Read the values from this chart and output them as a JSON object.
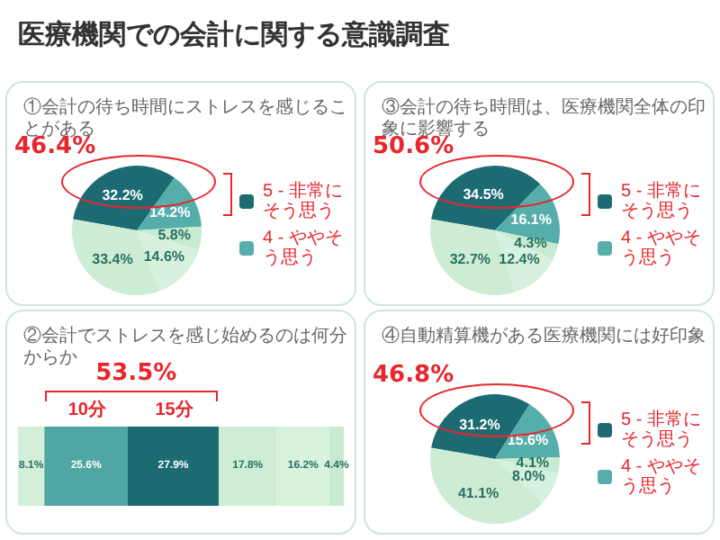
{
  "chart_data": [
    {
      "type": "pie",
      "title": "医療機関での会計に関する意識調査",
      "subtitle": "①会計の待ち時間にストレスを感じることがある",
      "categories": [
        "5 - 非常にそう思う",
        "4 - ややそう思う",
        null,
        null,
        null
      ],
      "values": [
        32.2,
        14.2,
        5.8,
        14.6,
        33.4
      ],
      "value_labels": [
        "32.2%",
        "14.2%",
        "5.8%",
        "14.6%",
        "33.4%"
      ],
      "colors": [
        "#1d6b72",
        "#56aeab",
        "#c6ebd0",
        "#d6f1dd",
        "#ccedd4"
      ],
      "legend": "right",
      "annotations": [
        "46.4%"
      ]
    },
    {
      "type": "pie",
      "title": "③会計の待ち時間は、医療機関全体の印象に影響する",
      "categories": [
        "5 - 非常にそう思う",
        "4 - ややそう思う",
        null,
        null,
        null
      ],
      "values": [
        34.5,
        16.1,
        4.3,
        12.4,
        32.7
      ],
      "value_labels": [
        "34.5%",
        "16.1%",
        "4.3%",
        "12.4%",
        "32.7%"
      ],
      "colors": [
        "#1d6b72",
        "#56aeab",
        "#c6ebd0",
        "#d6f1dd",
        "#ccedd4"
      ],
      "legend": "right",
      "annotations": [
        "50.6%"
      ]
    },
    {
      "type": "bar",
      "orientation": "horizontal",
      "stacked": true,
      "title": "②会計でストレスを感じ始めるのは何分からか",
      "categories": [
        null
      ],
      "legend": false,
      "tick_labels": false,
      "annotations": [
        "53.5%"
      ],
      "series": [
        {
          "color": "#d3efda",
          "values": [
            8.1
          ],
          "value_labels": [
            "8.1%"
          ]
        },
        {
          "name": "10分",
          "color": "#4fa6a3",
          "values": [
            25.6
          ],
          "value_labels": [
            "25.6%"
          ]
        },
        {
          "name": "15分",
          "color": "#1d6b72",
          "values": [
            27.9
          ],
          "value_labels": [
            "27.9%"
          ]
        },
        {
          "color": "#cdedd5",
          "values": [
            17.8
          ],
          "value_labels": [
            "17.8%"
          ]
        },
        {
          "color": "#d8f2de",
          "values": [
            16.2
          ],
          "value_labels": [
            "16.2%"
          ]
        },
        {
          "color": "#c8ead0",
          "values": [
            4.4
          ],
          "value_labels": [
            "4.4%"
          ]
        }
      ]
    },
    {
      "type": "pie",
      "title": "④自動精算機がある医療機関には好印象",
      "categories": [
        "5 - 非常にそう思う",
        "4 - ややそう思う",
        null,
        null,
        null
      ],
      "values": [
        31.2,
        15.6,
        4.1,
        8.0,
        41.1
      ],
      "value_labels": [
        "31.2%",
        "15.6%",
        "4.1%",
        "8.0%",
        "41.1%"
      ],
      "colors": [
        "#1d6b72",
        "#56aeab",
        "#c6ebd0",
        "#d6f1dd",
        "#ccedd4"
      ],
      "legend": "right",
      "annotations": [
        "46.8%"
      ]
    }
  ]
}
